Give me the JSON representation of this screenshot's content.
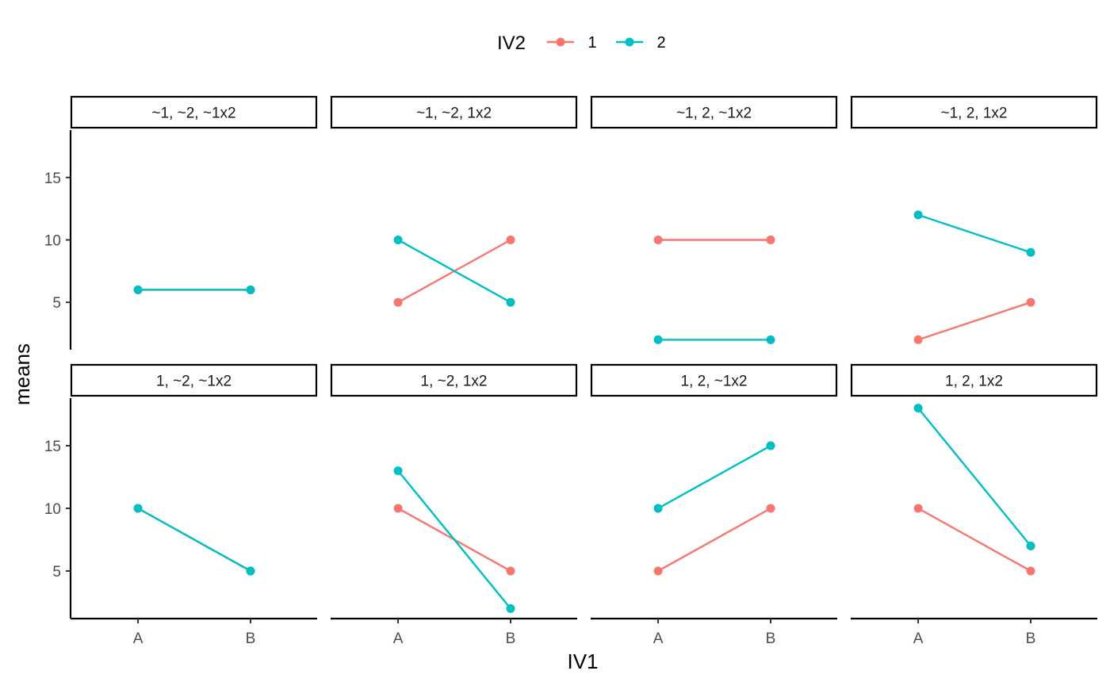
{
  "chart_data": {
    "type": "line",
    "xlabel": "IV1",
    "ylabel": "means",
    "categories": [
      "A",
      "B"
    ],
    "ylim": [
      1.2,
      18.8
    ],
    "yticks": [
      5,
      10,
      15
    ],
    "grid": false,
    "legend": {
      "title": "IV2",
      "position": "top",
      "entries": [
        {
          "name": "1",
          "color": "#F8766D"
        },
        {
          "name": "2",
          "color": "#00BFC4"
        }
      ]
    },
    "facets": [
      {
        "label": "~1, ~2, ~1x2",
        "series": [
          {
            "name": "1",
            "values": [
              6,
              6
            ]
          },
          {
            "name": "2",
            "values": [
              6,
              6
            ]
          }
        ]
      },
      {
        "label": "~1, ~2, 1x2",
        "series": [
          {
            "name": "1",
            "values": [
              5,
              10
            ]
          },
          {
            "name": "2",
            "values": [
              10,
              5
            ]
          }
        ]
      },
      {
        "label": "~1, 2, ~1x2",
        "series": [
          {
            "name": "1",
            "values": [
              10,
              10
            ]
          },
          {
            "name": "2",
            "values": [
              2,
              2
            ]
          }
        ]
      },
      {
        "label": "~1, 2, 1x2",
        "series": [
          {
            "name": "1",
            "values": [
              2,
              5
            ]
          },
          {
            "name": "2",
            "values": [
              12,
              9
            ]
          }
        ]
      },
      {
        "label": "1, ~2, ~1x2",
        "series": [
          {
            "name": "1",
            "values": [
              10,
              5
            ]
          },
          {
            "name": "2",
            "values": [
              10,
              5
            ]
          }
        ]
      },
      {
        "label": "1, ~2, 1x2",
        "series": [
          {
            "name": "1",
            "values": [
              10,
              5
            ]
          },
          {
            "name": "2",
            "values": [
              13,
              2
            ]
          }
        ]
      },
      {
        "label": "1, 2, ~1x2",
        "series": [
          {
            "name": "1",
            "values": [
              5,
              10
            ]
          },
          {
            "name": "2",
            "values": [
              10,
              15
            ]
          }
        ]
      },
      {
        "label": "1, 2, 1x2",
        "series": [
          {
            "name": "1",
            "values": [
              10,
              5
            ]
          },
          {
            "name": "2",
            "values": [
              18,
              7
            ]
          }
        ]
      }
    ]
  }
}
